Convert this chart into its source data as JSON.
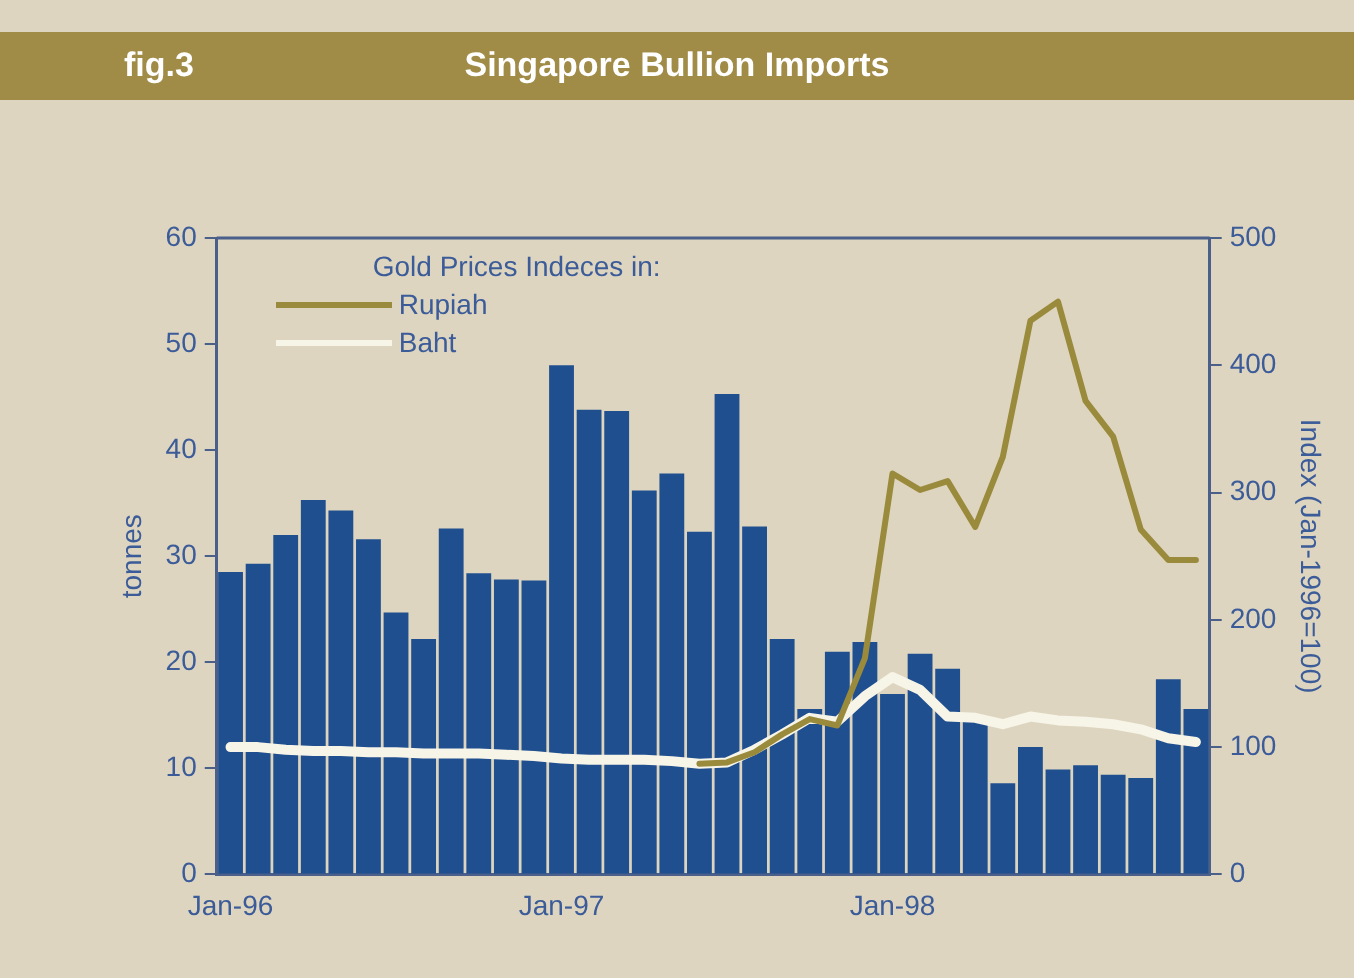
{
  "chart_data": {
    "type": "bar",
    "title": "Singapore Bullion Imports",
    "annotations": [
      "fig.3"
    ],
    "categories": [
      "Jan-96",
      null,
      null,
      null,
      null,
      null,
      null,
      null,
      null,
      null,
      null,
      null,
      "Jan-97",
      null,
      null,
      null,
      null,
      null,
      null,
      null,
      null,
      null,
      null,
      null,
      "Jan-98",
      null,
      null,
      null,
      null,
      null,
      null,
      null,
      null,
      null,
      null,
      null
    ],
    "series": [
      {
        "color": "#1f4f8f",
        "values": [
          28.5,
          29.3,
          32,
          35.3,
          34.3,
          31.6,
          24.7,
          22.2,
          32.6,
          28.4,
          27.8,
          27.7,
          48,
          43.8,
          43.7,
          36.2,
          37.8,
          32.3,
          45.3,
          32.8,
          22.2,
          15.6,
          21,
          21.9,
          17,
          20.8,
          19.4,
          14.7,
          8.6,
          12,
          9.9,
          10.3,
          9.4,
          9.1,
          18.4,
          15.6
        ]
      },
      {
        "type": "line",
        "name": "Rupiah",
        "axis": "y2",
        "color": "#9a8a3c",
        "values": [
          null,
          null,
          null,
          null,
          null,
          null,
          null,
          null,
          null,
          null,
          null,
          null,
          null,
          null,
          null,
          null,
          null,
          87,
          88,
          96,
          110,
          122,
          117,
          170,
          315,
          302,
          309,
          273,
          328,
          435,
          450,
          372,
          344,
          271,
          247,
          247
        ]
      },
      {
        "type": "line",
        "name": "Baht",
        "axis": "y2",
        "color": "#f7f4e8",
        "values": [
          100,
          100,
          98,
          97,
          97,
          96,
          96,
          95,
          95,
          95,
          94,
          93,
          91,
          90,
          90,
          90,
          89,
          87,
          88,
          98,
          110,
          123,
          120,
          140,
          155,
          145,
          124,
          123,
          118,
          124,
          121,
          120,
          118,
          114,
          107,
          104
        ]
      }
    ],
    "ylabel": "tonnes",
    "y2label": "Index (Jan-1996=100)",
    "ylim": [
      0,
      60
    ],
    "yticks": [
      0,
      10,
      20,
      30,
      40,
      50,
      60
    ],
    "y2lim": [
      0,
      500
    ],
    "y2ticks": [
      0,
      100,
      200,
      300,
      400,
      500
    ],
    "grid": false,
    "legend": "top left",
    "legend_title": "Gold Prices Indeces in:"
  }
}
